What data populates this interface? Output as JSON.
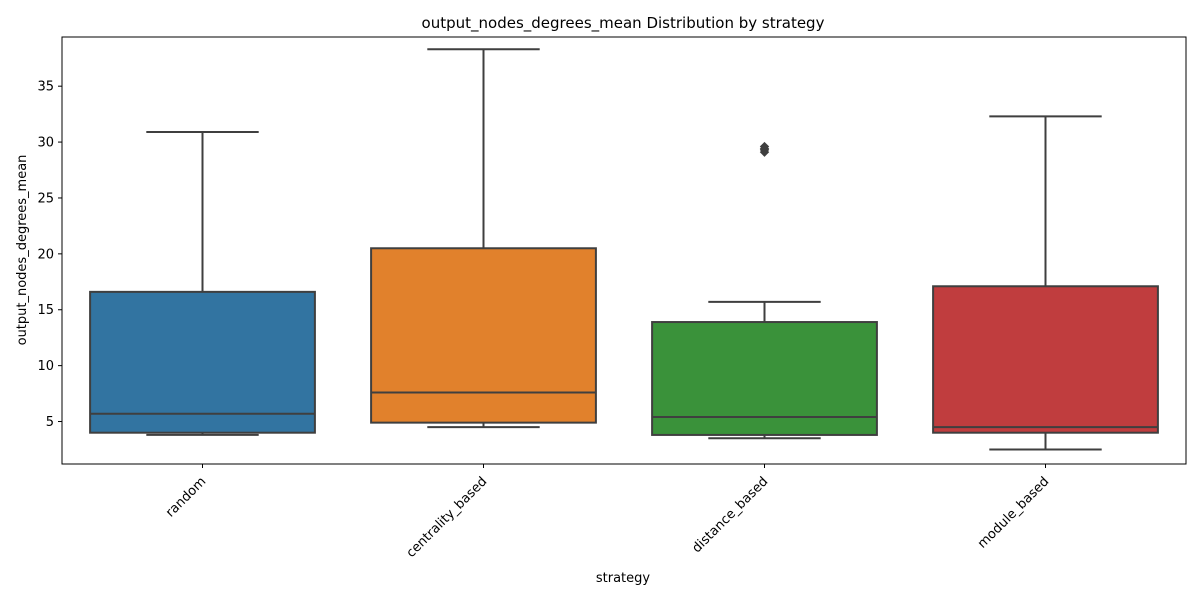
{
  "chart_data": {
    "type": "box",
    "title": "output_nodes_degrees_mean Distribution by strategy",
    "xlabel": "strategy",
    "ylabel": "output_nodes_degrees_mean",
    "ylim": [
      1.2,
      39.4
    ],
    "yticks": [
      5,
      10,
      15,
      20,
      25,
      30,
      35
    ],
    "grid": false,
    "legend": "none",
    "categories": [
      "random",
      "centrality_based",
      "distance_based",
      "module_based"
    ],
    "boxes": [
      {
        "category": "random",
        "color": "#3274a1",
        "whisker_low": 3.8,
        "q1": 4.0,
        "median": 5.7,
        "q3": 16.6,
        "whisker_high": 30.9,
        "outliers": []
      },
      {
        "category": "centrality_based",
        "color": "#e1812c",
        "whisker_low": 4.5,
        "q1": 4.9,
        "median": 7.6,
        "q3": 20.5,
        "whisker_high": 38.3,
        "outliers": []
      },
      {
        "category": "distance_based",
        "color": "#3a923a",
        "whisker_low": 3.5,
        "q1": 3.8,
        "median": 5.4,
        "q3": 13.9,
        "whisker_high": 15.7,
        "outliers": [
          29.1,
          29.3,
          29.4,
          29.6
        ]
      },
      {
        "category": "module_based",
        "color": "#c03d3e",
        "whisker_low": 2.5,
        "q1": 4.0,
        "median": 4.5,
        "q3": 17.1,
        "whisker_high": 32.3,
        "outliers": []
      }
    ]
  }
}
